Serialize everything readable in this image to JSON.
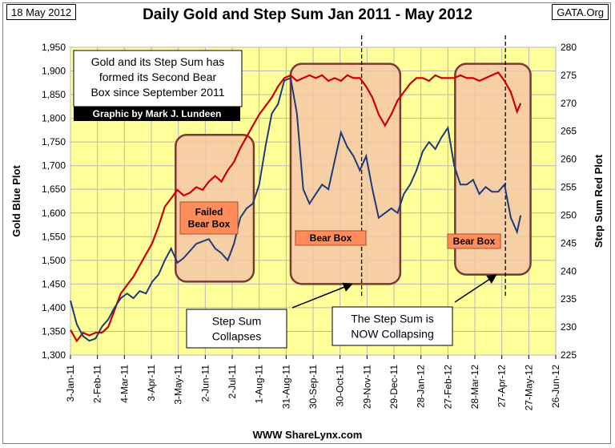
{
  "header": {
    "date": "18 May 2012",
    "title": "Daily Gold and Step Sum Jan 2011 - May 2012",
    "source": "GATA.Org"
  },
  "footer": {
    "website": "WWW ShareLynx.com"
  },
  "annotations": {
    "main_note": [
      "Gold and its Step Sum has",
      "formed its Second Bear",
      "Box since September 2011"
    ],
    "credit": "Graphic by Mark J. Lundeen",
    "box1_label": [
      "Failed",
      "Bear Box"
    ],
    "box2_label": "Bear Box",
    "box3_label": "Bear Box",
    "callout_left": [
      "Step Sum",
      "Collapses"
    ],
    "callout_right": [
      "The Step Sum is",
      "NOW Collapsing"
    ]
  },
  "colors": {
    "plot_bg": "#ffff99",
    "gold_line": "#1f3a7a",
    "stepsum_line": "#cc0000",
    "box_fill": "#f4c7a6",
    "box_border": "#7a3a32",
    "label_fill": "#ff8c5a"
  },
  "chart_data": {
    "type": "line",
    "title": "Daily Gold and Step Sum Jan 2011 - May 2012",
    "ylabel": "Gold Blue Plot",
    "y2label": "Step Sum Red Plot",
    "ylim": [
      1300,
      1950
    ],
    "y2lim": [
      225,
      280
    ],
    "yticks": [
      1300,
      1350,
      1400,
      1450,
      1500,
      1550,
      1600,
      1650,
      1700,
      1750,
      1800,
      1850,
      1900,
      1950
    ],
    "y2ticks": [
      225,
      230,
      235,
      240,
      245,
      250,
      255,
      260,
      265,
      270,
      275,
      280
    ],
    "x_tick_labels": [
      "3-Jan-11",
      "2-Feb-11",
      "4-Mar-11",
      "3-Apr-11",
      "3-May-11",
      "2-Jun-11",
      "2-Jul-11",
      "1-Aug-11",
      "31-Aug-11",
      "30-Sep-11",
      "30-Oct-11",
      "29-Nov-11",
      "29-Dec-11",
      "28-Jan-12",
      "27-Feb-12",
      "28-Mar-12",
      "27-Apr-12",
      "27-May-12",
      "26-Jun-12"
    ],
    "xlim": [
      "2011-01-03",
      "2012-06-26"
    ],
    "grid": true,
    "series": [
      {
        "axis": "left",
        "dates": [
          "2011-01-03",
          "2011-01-10",
          "2011-01-17",
          "2011-01-24",
          "2011-01-31",
          "2011-02-07",
          "2011-02-14",
          "2011-02-21",
          "2011-02-28",
          "2011-03-07",
          "2011-03-14",
          "2011-03-21",
          "2011-03-28",
          "2011-04-04",
          "2011-04-11",
          "2011-04-18",
          "2011-04-25",
          "2011-05-02",
          "2011-05-09",
          "2011-05-16",
          "2011-05-23",
          "2011-05-30",
          "2011-06-06",
          "2011-06-13",
          "2011-06-20",
          "2011-06-27",
          "2011-07-04",
          "2011-07-11",
          "2011-07-18",
          "2011-07-25",
          "2011-08-01",
          "2011-08-08",
          "2011-08-15",
          "2011-08-22",
          "2011-08-29",
          "2011-09-05",
          "2011-09-12",
          "2011-09-19",
          "2011-09-26",
          "2011-10-03",
          "2011-10-10",
          "2011-10-17",
          "2011-10-24",
          "2011-10-31",
          "2011-11-07",
          "2011-11-14",
          "2011-11-21",
          "2011-11-28",
          "2011-12-05",
          "2011-12-12",
          "2011-12-19",
          "2011-12-26",
          "2012-01-02",
          "2012-01-09",
          "2012-01-16",
          "2012-01-23",
          "2012-01-30",
          "2012-02-06",
          "2012-02-13",
          "2012-02-20",
          "2012-02-27",
          "2012-03-05",
          "2012-03-12",
          "2012-03-19",
          "2012-03-26",
          "2012-04-02",
          "2012-04-09",
          "2012-04-16",
          "2012-04-23",
          "2012-04-30",
          "2012-05-07",
          "2012-05-14",
          "2012-05-18"
        ],
        "values": [
          1415,
          1365,
          1340,
          1330,
          1335,
          1360,
          1375,
          1400,
          1420,
          1430,
          1420,
          1435,
          1430,
          1455,
          1470,
          1500,
          1525,
          1495,
          1505,
          1520,
          1535,
          1540,
          1545,
          1525,
          1515,
          1500,
          1535,
          1590,
          1610,
          1620,
          1660,
          1740,
          1810,
          1830,
          1880,
          1885,
          1810,
          1650,
          1620,
          1640,
          1660,
          1650,
          1710,
          1770,
          1740,
          1720,
          1690,
          1720,
          1650,
          1590,
          1600,
          1610,
          1600,
          1640,
          1660,
          1690,
          1730,
          1750,
          1735,
          1760,
          1780,
          1700,
          1660,
          1660,
          1670,
          1640,
          1655,
          1645,
          1645,
          1660,
          1590,
          1560,
          1595
        ]
      },
      {
        "axis": "right",
        "dates": [
          "2011-01-03",
          "2011-01-10",
          "2011-01-17",
          "2011-01-24",
          "2011-01-31",
          "2011-02-07",
          "2011-02-14",
          "2011-02-21",
          "2011-02-28",
          "2011-03-07",
          "2011-03-14",
          "2011-03-21",
          "2011-03-28",
          "2011-04-04",
          "2011-04-11",
          "2011-04-18",
          "2011-04-25",
          "2011-05-02",
          "2011-05-09",
          "2011-05-16",
          "2011-05-23",
          "2011-05-30",
          "2011-06-06",
          "2011-06-13",
          "2011-06-20",
          "2011-06-27",
          "2011-07-04",
          "2011-07-11",
          "2011-07-18",
          "2011-07-25",
          "2011-08-01",
          "2011-08-08",
          "2011-08-15",
          "2011-08-22",
          "2011-08-29",
          "2011-09-05",
          "2011-09-12",
          "2011-09-19",
          "2011-09-26",
          "2011-10-03",
          "2011-10-10",
          "2011-10-17",
          "2011-10-24",
          "2011-10-31",
          "2011-11-07",
          "2011-11-14",
          "2011-11-21",
          "2011-11-28",
          "2011-12-05",
          "2011-12-12",
          "2011-12-19",
          "2011-12-26",
          "2012-01-02",
          "2012-01-09",
          "2012-01-16",
          "2012-01-23",
          "2012-01-30",
          "2012-02-06",
          "2012-02-13",
          "2012-02-20",
          "2012-02-27",
          "2012-03-05",
          "2012-03-12",
          "2012-03-19",
          "2012-03-26",
          "2012-04-02",
          "2012-04-09",
          "2012-04-16",
          "2012-04-23",
          "2012-04-30",
          "2012-05-07",
          "2012-05-14",
          "2012-05-18"
        ],
        "values": [
          229.5,
          227.5,
          229,
          228.5,
          229,
          229,
          230,
          233,
          236,
          237.5,
          239,
          241,
          243,
          245,
          248,
          251.5,
          253,
          254.5,
          253.5,
          254,
          255,
          254.5,
          256,
          257,
          256,
          258,
          259.5,
          262,
          264,
          266,
          268,
          269.5,
          271,
          273,
          274.5,
          275,
          274,
          274.5,
          275,
          274.5,
          275,
          274,
          274.5,
          274,
          275,
          274.5,
          274.5,
          273,
          271,
          268,
          266,
          268,
          270.5,
          272,
          273.5,
          274.5,
          274.5,
          274,
          275,
          274.5,
          274.5,
          274.5,
          275,
          274.5,
          274.5,
          274,
          274.5,
          275,
          275.5,
          274,
          272,
          268.5,
          270
        ]
      }
    ]
  }
}
